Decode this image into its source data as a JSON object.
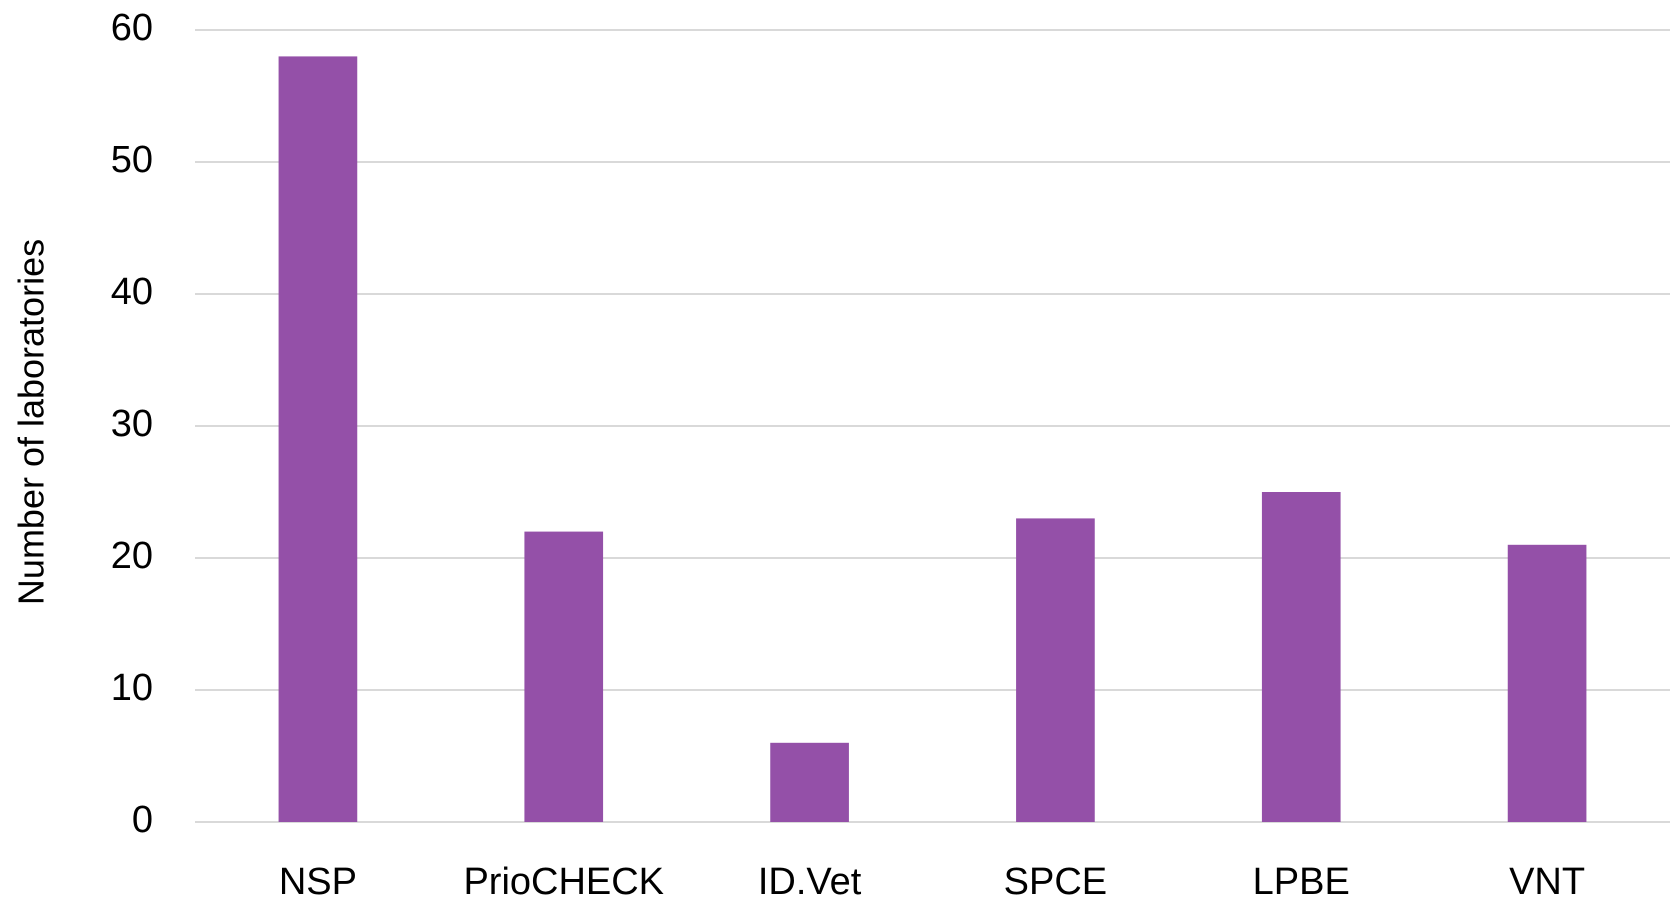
{
  "chart_data": {
    "type": "bar",
    "y_label": "Number of laboratories",
    "categories": [
      "NSP",
      "PrioCHECK",
      "ID.Vet",
      "SPCE",
      "LPBE",
      "VNT"
    ],
    "values": [
      58,
      22,
      6,
      23,
      25,
      21
    ],
    "color": "#9450a8",
    "ylim": [
      0,
      60
    ],
    "yticks": [
      0,
      10,
      20,
      30,
      40,
      50,
      60
    ],
    "grid": true
  }
}
